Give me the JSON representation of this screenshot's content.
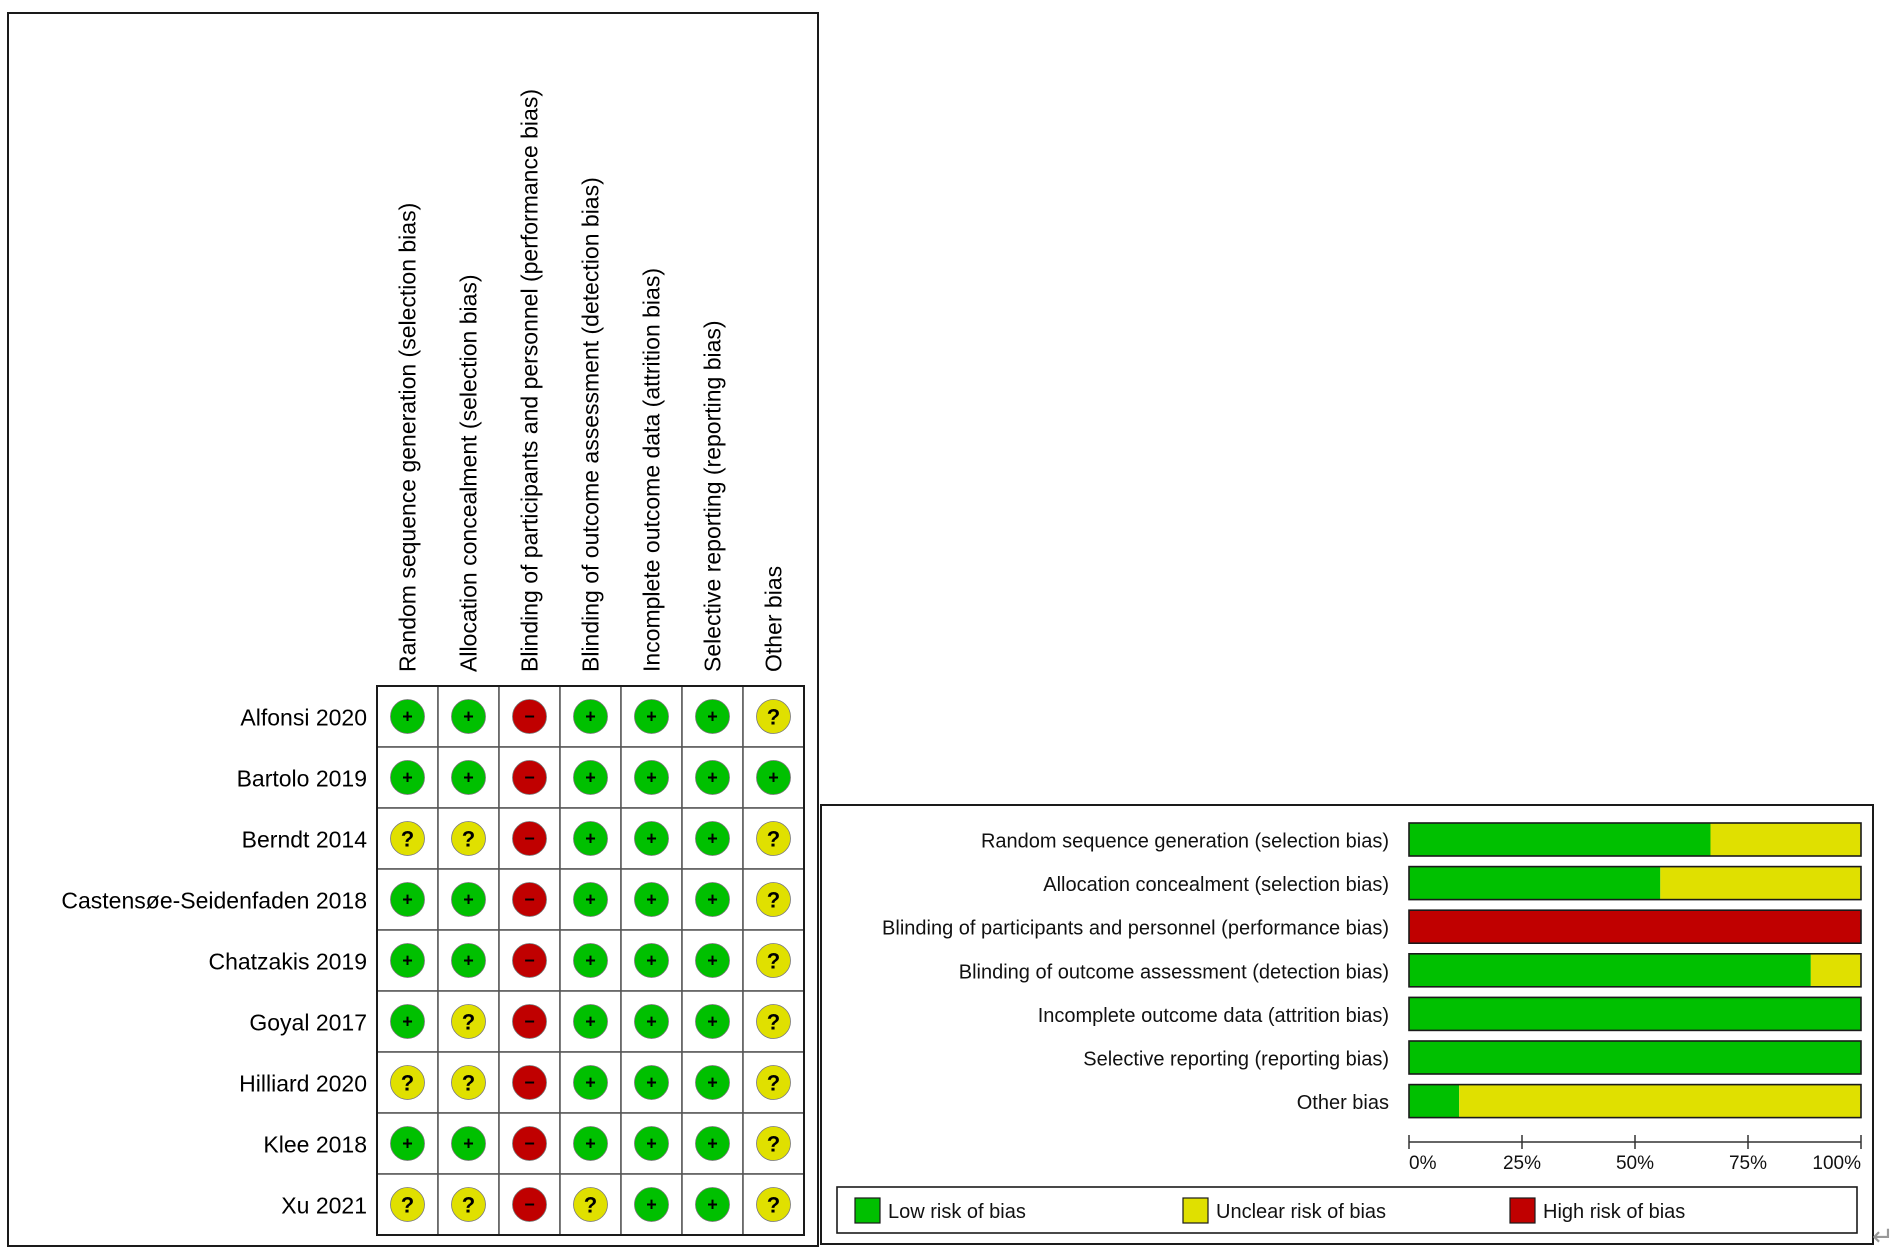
{
  "chart_data": [
    {
      "type": "table",
      "domains": [
        "Random sequence generation (selection bias)",
        "Allocation concealment (selection bias)",
        "Blinding of participants and personnel (performance bias)",
        "Blinding of outcome assessment (detection bias)",
        "Incomplete outcome data (attrition bias)",
        "Selective reporting (reporting bias)",
        "Other bias"
      ],
      "studies": [
        {
          "name": "Alfonsi 2020",
          "ratings": [
            "low",
            "low",
            "high",
            "low",
            "low",
            "low",
            "unclear"
          ]
        },
        {
          "name": "Bartolo 2019",
          "ratings": [
            "low",
            "low",
            "high",
            "low",
            "low",
            "low",
            "low"
          ]
        },
        {
          "name": "Berndt 2014",
          "ratings": [
            "unclear",
            "unclear",
            "high",
            "low",
            "low",
            "low",
            "unclear"
          ]
        },
        {
          "name": "Castensøe-Seidenfaden 2018",
          "ratings": [
            "low",
            "low",
            "high",
            "low",
            "low",
            "low",
            "unclear"
          ]
        },
        {
          "name": "Chatzakis 2019",
          "ratings": [
            "low",
            "low",
            "high",
            "low",
            "low",
            "low",
            "unclear"
          ]
        },
        {
          "name": "Goyal 2017",
          "ratings": [
            "low",
            "unclear",
            "high",
            "low",
            "low",
            "low",
            "unclear"
          ]
        },
        {
          "name": "Hilliard 2020",
          "ratings": [
            "unclear",
            "unclear",
            "high",
            "low",
            "low",
            "low",
            "unclear"
          ]
        },
        {
          "name": "Klee 2018",
          "ratings": [
            "low",
            "low",
            "high",
            "low",
            "low",
            "low",
            "unclear"
          ]
        },
        {
          "name": "Xu 2021",
          "ratings": [
            "unclear",
            "unclear",
            "high",
            "unclear",
            "low",
            "low",
            "unclear"
          ]
        }
      ],
      "symbols": {
        "low": "+",
        "unclear": "?",
        "high": "−"
      }
    },
    {
      "type": "bar",
      "stacked": true,
      "orientation": "horizontal",
      "categories": [
        "Random sequence generation (selection bias)",
        "Allocation concealment (selection bias)",
        "Blinding of participants and personnel (performance bias)",
        "Blinding of outcome assessment (detection bias)",
        "Incomplete outcome data (attrition bias)",
        "Selective reporting (reporting bias)",
        "Other bias"
      ],
      "series": [
        {
          "name": "Low risk of bias",
          "key": "low",
          "values": [
            66.7,
            55.6,
            0,
            88.9,
            100,
            100,
            11.1
          ]
        },
        {
          "name": "Unclear risk of bias",
          "key": "unclear",
          "values": [
            33.3,
            44.4,
            0,
            11.1,
            0,
            0,
            88.9
          ]
        },
        {
          "name": "High risk of bias",
          "key": "high",
          "values": [
            0,
            0,
            100,
            0,
            0,
            0,
            0
          ]
        }
      ],
      "xlim": [
        0,
        100
      ],
      "xticks": [
        "0%",
        "25%",
        "50%",
        "75%",
        "100%"
      ],
      "legend_position": "bottom"
    }
  ],
  "colors": {
    "low": "#00c000",
    "unclear": "#e0e000",
    "high": "#c00000",
    "border": "#1a1a1a"
  },
  "corner_glyph": "↵"
}
